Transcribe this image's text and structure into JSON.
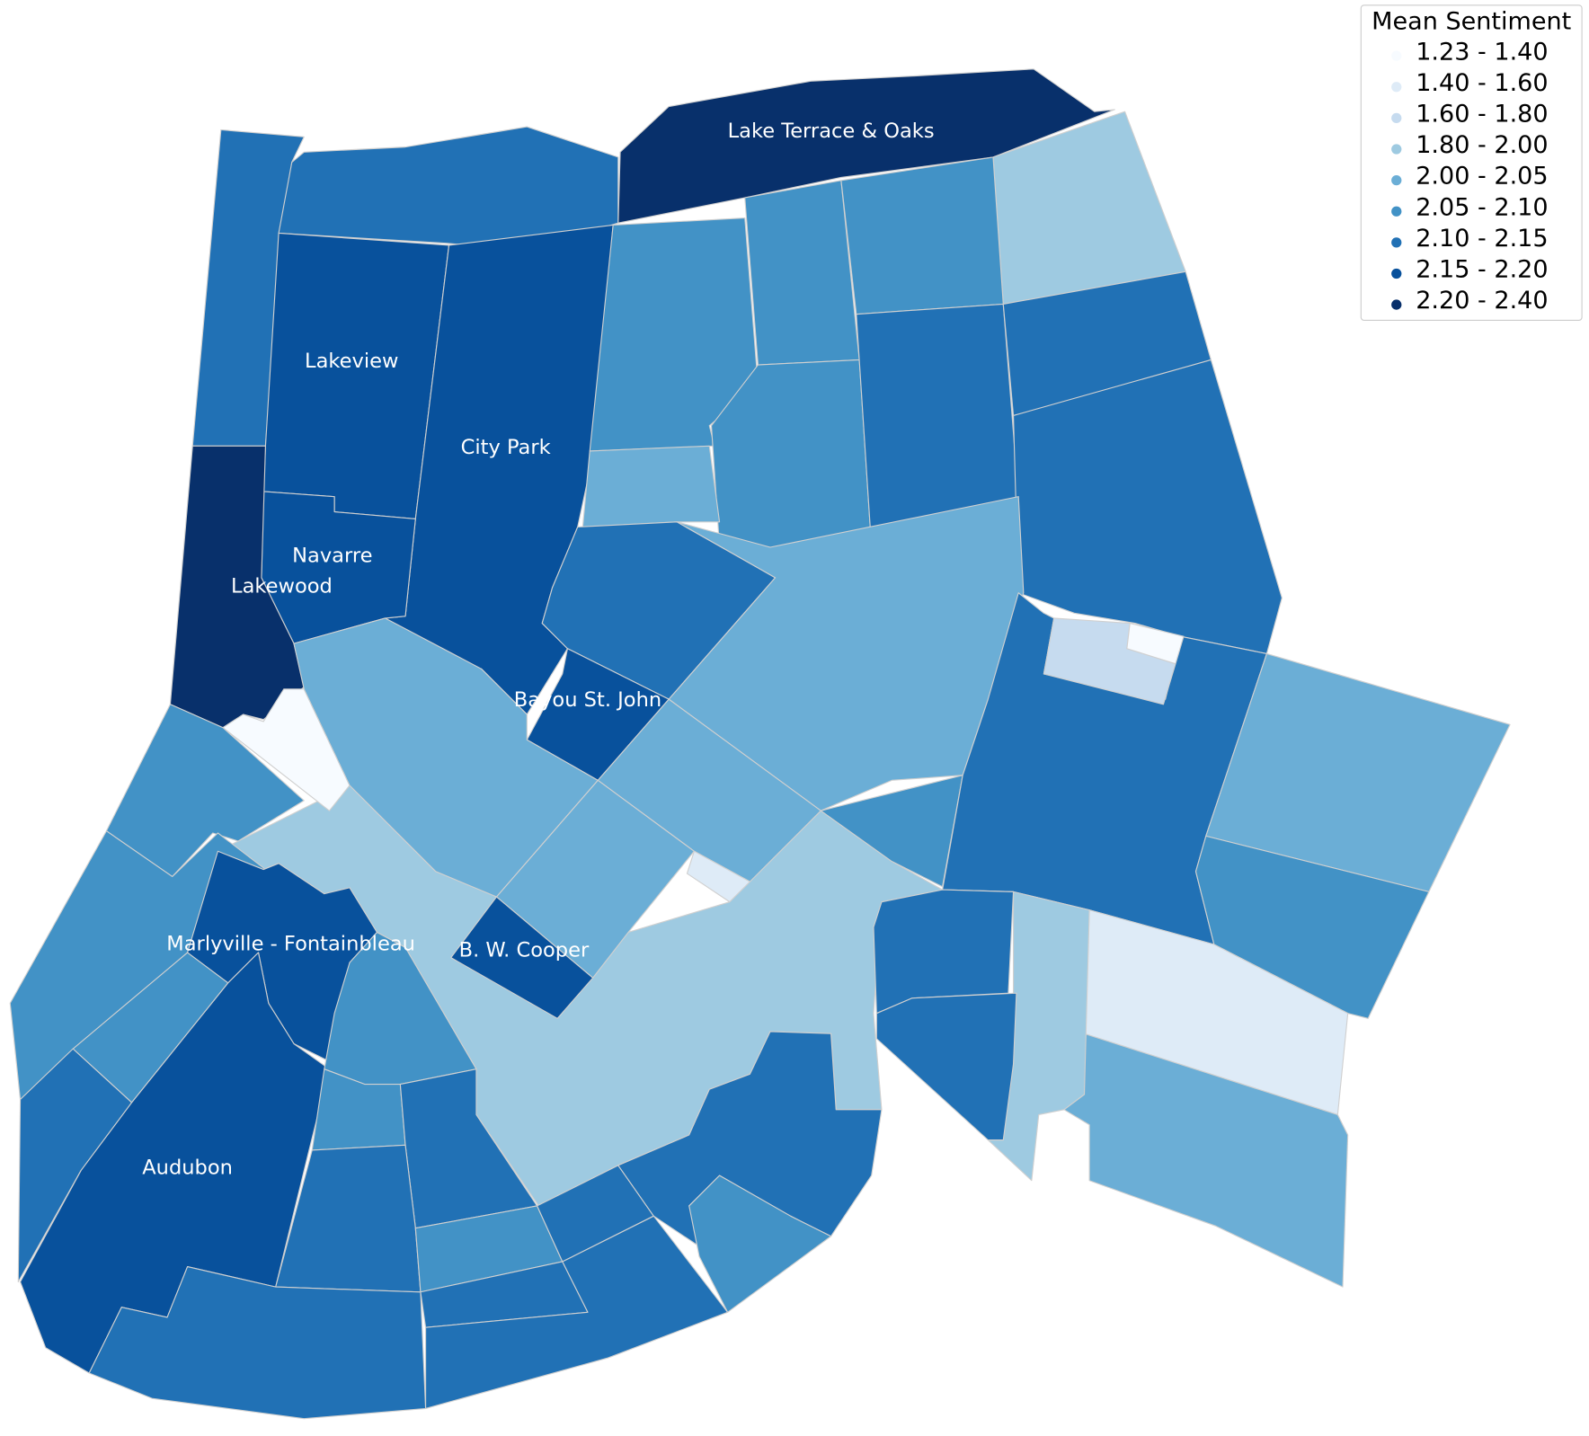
{
  "legend": {
    "title": "Mean Sentiment",
    "items": [
      {
        "label": "1.23 - 1.40",
        "color": "#f7fbff"
      },
      {
        "label": "1.40 - 1.60",
        "color": "#deebf7"
      },
      {
        "label": "1.60 - 1.80",
        "color": "#c6dbef"
      },
      {
        "label": "1.80 - 2.00",
        "color": "#9ecae1"
      },
      {
        "label": "2.00 - 2.05",
        "color": "#6baed6"
      },
      {
        "label": "2.05 - 2.10",
        "color": "#4292c6"
      },
      {
        "label": "2.10 - 2.15",
        "color": "#2171b5"
      },
      {
        "label": "2.15 - 2.20",
        "color": "#08519c"
      },
      {
        "label": "2.20 - 2.40",
        "color": "#08306b"
      }
    ]
  },
  "labels": [
    "Lake Terrace & Oaks",
    "Lakeview",
    "City Park",
    "Navarre",
    "Lakewood",
    "Bayou St. John",
    "Marlyville - Fontainbleau",
    "B. W. Cooper",
    "Audubon"
  ]
}
